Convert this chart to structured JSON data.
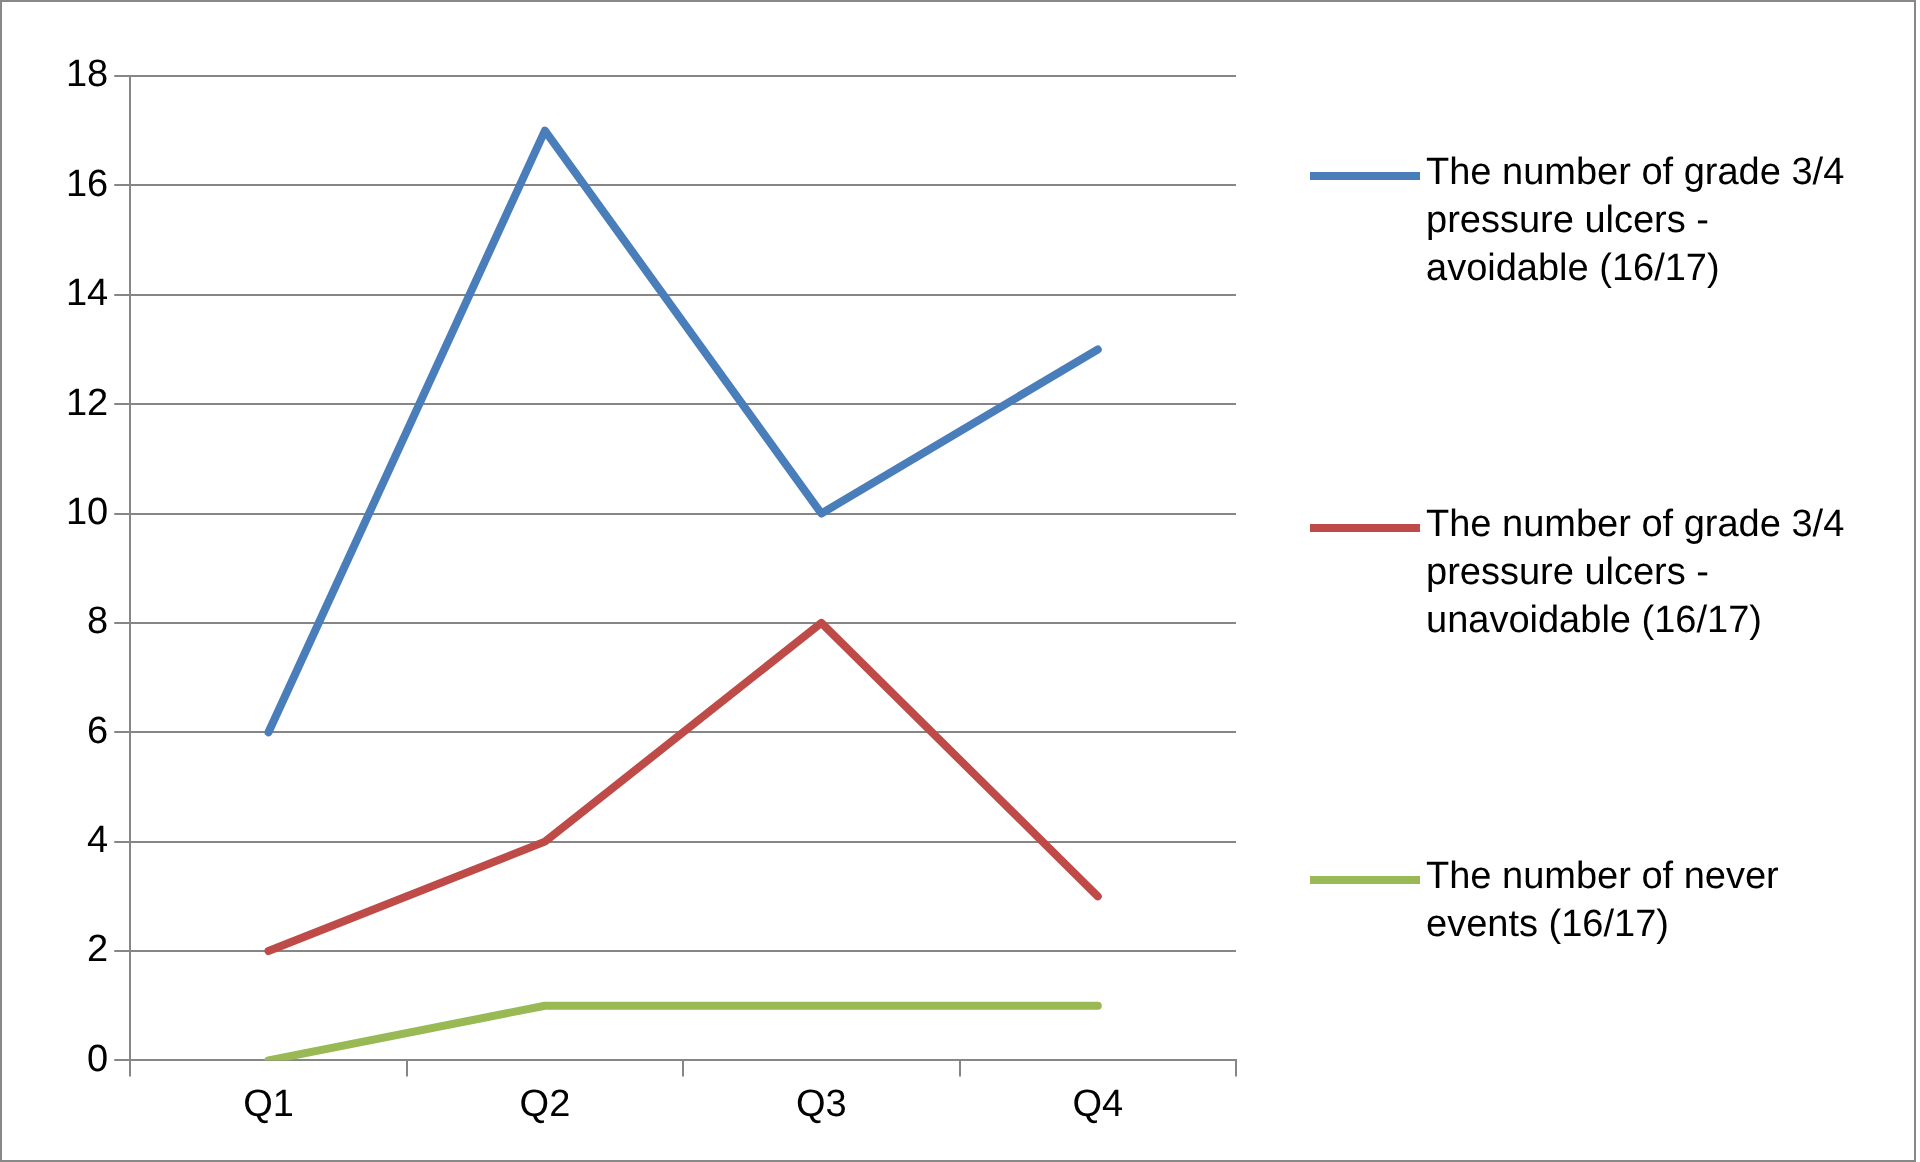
{
  "chart_data": {
    "type": "line",
    "categories": [
      "Q1",
      "Q2",
      "Q3",
      "Q4"
    ],
    "series": [
      {
        "name": "The number of grade 3/4 pressure ulcers - avoidable (16/17)",
        "color": "#4a7ebb",
        "values": [
          6,
          17,
          10,
          13
        ]
      },
      {
        "name": "The number of grade 3/4 pressure ulcers - unavoidable (16/17)",
        "color": "#be4b48",
        "values": [
          2,
          4,
          8,
          3
        ]
      },
      {
        "name": "The number of never events (16/17)",
        "color": "#98b954",
        "values": [
          0,
          1,
          1,
          1
        ]
      }
    ],
    "ylim": [
      0,
      18
    ],
    "yticks": [
      0,
      2,
      4,
      6,
      8,
      10,
      12,
      14,
      16,
      18
    ],
    "grid": "y",
    "legend": "right",
    "marker": "none",
    "line_style": "solid"
  }
}
